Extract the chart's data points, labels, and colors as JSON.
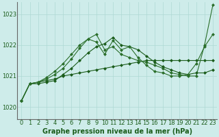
{
  "background_color": "#ceecea",
  "grid_color": "#aed8d4",
  "xlabel": "Graphe pression niveau de la mer (hPa)",
  "xlim": [
    -0.5,
    23.5
  ],
  "ylim": [
    1019.6,
    1023.4
  ],
  "yticks": [
    1020,
    1021,
    1022,
    1023
  ],
  "xticks": [
    0,
    1,
    2,
    3,
    4,
    5,
    6,
    7,
    8,
    9,
    10,
    11,
    12,
    13,
    14,
    15,
    16,
    17,
    18,
    19,
    20,
    21,
    22,
    23
  ],
  "series": [
    {
      "x": [
        0,
        1,
        2,
        3,
        4,
        5,
        6,
        7,
        8,
        9,
        10,
        11,
        12,
        13,
        14,
        15,
        16,
        17,
        18,
        19,
        20,
        21,
        22,
        23
      ],
      "y": [
        1020.2,
        1020.75,
        1020.8,
        1020.85,
        1020.9,
        1021.0,
        1021.05,
        1021.1,
        1021.15,
        1021.2,
        1021.25,
        1021.3,
        1021.35,
        1021.4,
        1021.45,
        1021.5,
        1021.5,
        1021.5,
        1021.5,
        1021.5,
        1021.5,
        1021.5,
        1021.5,
        1021.5
      ],
      "marker": "D",
      "markersize": 2,
      "linewidth": 0.8,
      "color": "#1a5c1a"
    },
    {
      "x": [
        0,
        1,
        2,
        3,
        4,
        5,
        6,
        7,
        8,
        9,
        10,
        11,
        12,
        13,
        14,
        15,
        16,
        17,
        18,
        19,
        20,
        21,
        22,
        23
      ],
      "y": [
        1020.2,
        1020.75,
        1020.8,
        1020.9,
        1021.05,
        1021.25,
        1021.55,
        1021.9,
        1022.2,
        1022.35,
        1021.85,
        1021.95,
        1021.7,
        1021.6,
        1021.5,
        1021.45,
        1021.35,
        1021.25,
        1021.1,
        1021.05,
        1021.0,
        1021.0,
        1022.0,
        1023.3
      ],
      "marker": "D",
      "markersize": 2,
      "linewidth": 0.8,
      "color": "#2a6e2a"
    },
    {
      "x": [
        0,
        1,
        2,
        3,
        4,
        5,
        6,
        7,
        8,
        9,
        10,
        11,
        12,
        13,
        14,
        15,
        16,
        17,
        18,
        19,
        20,
        21,
        22,
        23
      ],
      "y": [
        1020.2,
        1020.75,
        1020.75,
        1020.8,
        1020.85,
        1021.05,
        1021.25,
        1021.5,
        1021.75,
        1021.95,
        1022.05,
        1022.25,
        1022.0,
        1021.95,
        1021.85,
        1021.65,
        1021.45,
        1021.3,
        1021.2,
        1021.1,
        1021.05,
        1021.1,
        1021.1,
        1021.2
      ],
      "marker": "D",
      "markersize": 2,
      "linewidth": 0.8,
      "color": "#1a5c1a"
    },
    {
      "x": [
        0,
        1,
        2,
        3,
        4,
        5,
        6,
        7,
        8,
        9,
        10,
        11,
        12,
        13,
        14,
        15,
        16,
        17,
        18,
        19,
        20,
        21,
        22,
        23
      ],
      "y": [
        1020.2,
        1020.75,
        1020.8,
        1020.95,
        1021.15,
        1021.4,
        1021.7,
        1022.0,
        1022.2,
        1022.1,
        1021.7,
        1022.15,
        1021.85,
        1021.95,
        1021.6,
        1021.35,
        1021.15,
        1021.1,
        1021.0,
        1021.0,
        1021.05,
        1021.4,
        1021.95,
        1022.35
      ],
      "marker": "D",
      "markersize": 2,
      "linewidth": 0.8,
      "color": "#2a6e2a"
    }
  ],
  "xlabel_fontsize": 7,
  "xlabel_color": "#1a5c1a",
  "tick_fontsize": 6,
  "tick_color": "#1a5c1a"
}
